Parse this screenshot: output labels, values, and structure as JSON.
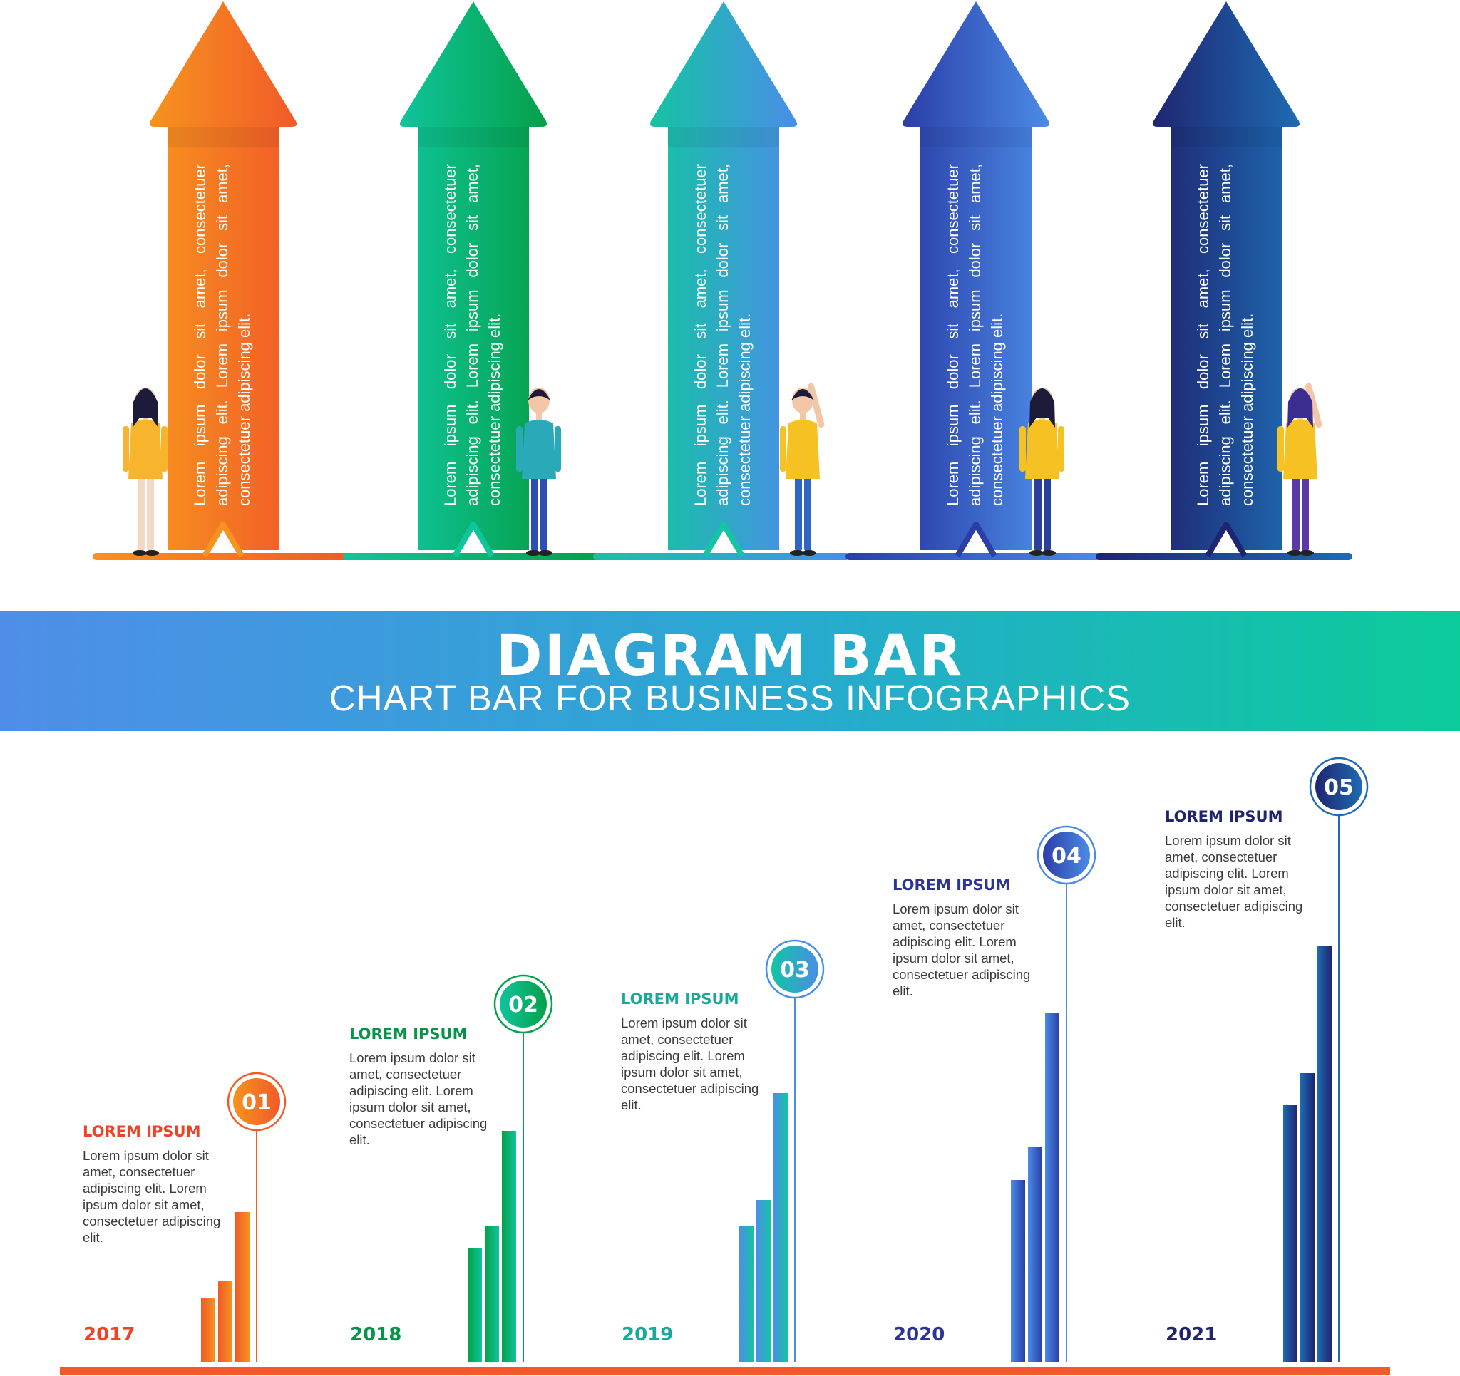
{
  "title": "DIAGRAM BAR",
  "subtitle": "CHART BAR FOR BUSINESS INFOGRAPHICS",
  "arrows": [
    {
      "text": "Lorem ipsum dolor sit amet, consectetuer adipiscing elit. Lorem ipsum dolor sit amet, consectetuer adipiscing elit.",
      "colors": [
        "#f7931e",
        "#f15a29"
      ]
    },
    {
      "text": "Lorem ipsum dolor sit amet, consectetuer adipiscing elit. Lorem ipsum dolor sit amet, consectetuer adipiscing elit.",
      "colors": [
        "#0fc59b",
        "#05a04a"
      ]
    },
    {
      "text": "Lorem ipsum dolor sit amet, consectetuer adipiscing elit. Lorem ipsum dolor sit amet, consectetuer adipiscing elit.",
      "colors": [
        "#14c4a3",
        "#4a8ee8"
      ]
    },
    {
      "text": "Lorem ipsum dolor sit amet, consectetuer adipiscing elit. Lorem ipsum dolor sit amet, consectetuer adipiscing elit.",
      "colors": [
        "#2b3ea8",
        "#4b8be6"
      ]
    },
    {
      "text": "Lorem ipsum dolor sit amet, consectetuer adipiscing elit. Lorem ipsum dolor sit amet, consectetuer adipiscing elit.",
      "colors": [
        "#1f2570",
        "#1e6bb3"
      ]
    }
  ],
  "chart_data": {
    "type": "bar",
    "title": "DIAGRAM BAR",
    "subtitle": "CHART BAR FOR BUSINESS INFOGRAPHICS",
    "categories": [
      "2017",
      "2018",
      "2019",
      "2020",
      "2021"
    ],
    "groups": [
      {
        "year": "2017",
        "badge": "01",
        "heading": "LOREM IPSUM",
        "body": "Lorem ipsum dolor sit amet, consectetuer adipiscing elit. Lorem ipsum dolor sit amet, consectetuer adipiscing elit.",
        "values": [
          90,
          114,
          211
        ],
        "marker": 366,
        "colors": [
          "#f7931e",
          "#f15a29"
        ],
        "label_color": "#ef4423"
      },
      {
        "year": "2018",
        "badge": "02",
        "heading": "LOREM IPSUM",
        "body": "Lorem ipsum dolor sit amet, consectetuer adipiscing elit. Lorem ipsum dolor sit amet, consectetuer adipiscing elit.",
        "values": [
          160,
          192,
          325
        ],
        "marker": 503,
        "colors": [
          "#0fc59b",
          "#05a04a"
        ],
        "label_color": "#079448"
      },
      {
        "year": "2019",
        "badge": "03",
        "heading": "LOREM IPSUM",
        "body": "Lorem ipsum dolor sit amet, consectetuer adipiscing elit. Lorem ipsum dolor sit amet, consectetuer adipiscing elit.",
        "values": [
          192,
          228,
          378
        ],
        "marker": 552,
        "colors": [
          "#14c4a3",
          "#4a8ee8"
        ],
        "label_color": "#19a99a"
      },
      {
        "year": "2020",
        "badge": "04",
        "heading": "LOREM IPSUM",
        "body": "Lorem ipsum dolor sit amet, consectetuer adipiscing elit. Lorem ipsum dolor sit amet, consectetuer adipiscing elit.",
        "values": [
          256,
          302,
          490
        ],
        "marker": 712,
        "colors": [
          "#2b3ea8",
          "#4b8be6"
        ],
        "label_color": "#2c3595"
      },
      {
        "year": "2021",
        "badge": "05",
        "heading": "LOREM IPSUM",
        "body": "Lorem ipsum dolor sit amet, consectetuer adipiscing elit. Lorem ipsum dolor sit amet, consectetuer adipiscing elit.",
        "values": [
          362,
          406,
          584
        ],
        "marker": 808,
        "colors": [
          "#1f2570",
          "#1e6bb3"
        ],
        "label_color": "#1f2570"
      }
    ],
    "baseline_color": "#f15a29"
  }
}
